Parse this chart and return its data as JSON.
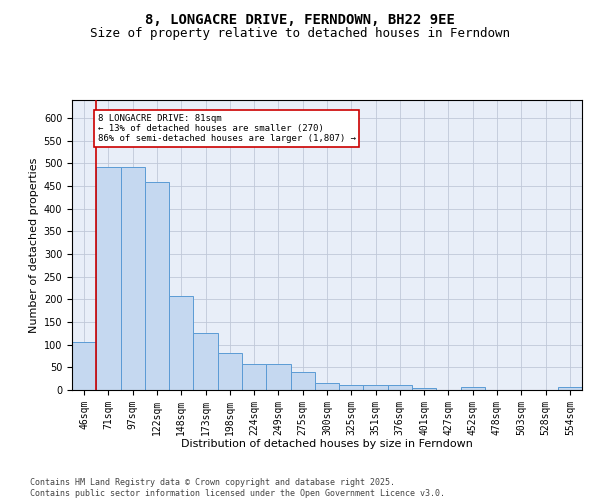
{
  "title": "8, LONGACRE DRIVE, FERNDOWN, BH22 9EE",
  "subtitle": "Size of property relative to detached houses in Ferndown",
  "xlabel": "Distribution of detached houses by size in Ferndown",
  "ylabel": "Number of detached properties",
  "categories": [
    "46sqm",
    "71sqm",
    "97sqm",
    "122sqm",
    "148sqm",
    "173sqm",
    "198sqm",
    "224sqm",
    "249sqm",
    "275sqm",
    "300sqm",
    "325sqm",
    "351sqm",
    "376sqm",
    "401sqm",
    "427sqm",
    "452sqm",
    "478sqm",
    "503sqm",
    "528sqm",
    "554sqm"
  ],
  "values": [
    105,
    493,
    493,
    460,
    207,
    125,
    82,
    57,
    57,
    40,
    15,
    10,
    12,
    10,
    4,
    0,
    7,
    0,
    0,
    0,
    7
  ],
  "bar_color": "#c5d8f0",
  "bar_edge_color": "#5b9bd5",
  "vline_color": "#cc0000",
  "vline_x": 0.5,
  "annotation_text": "8 LONGACRE DRIVE: 81sqm\n← 13% of detached houses are smaller (270)\n86% of semi-detached houses are larger (1,807) →",
  "annotation_box_color": "#ffffff",
  "annotation_box_edge_color": "#cc0000",
  "ylim": [
    0,
    640
  ],
  "yticks": [
    0,
    50,
    100,
    150,
    200,
    250,
    300,
    350,
    400,
    450,
    500,
    550,
    600
  ],
  "background_color": "#e8eef8",
  "footer_text": "Contains HM Land Registry data © Crown copyright and database right 2025.\nContains public sector information licensed under the Open Government Licence v3.0.",
  "title_fontsize": 10,
  "subtitle_fontsize": 9,
  "label_fontsize": 8,
  "tick_fontsize": 7,
  "footer_fontsize": 6
}
